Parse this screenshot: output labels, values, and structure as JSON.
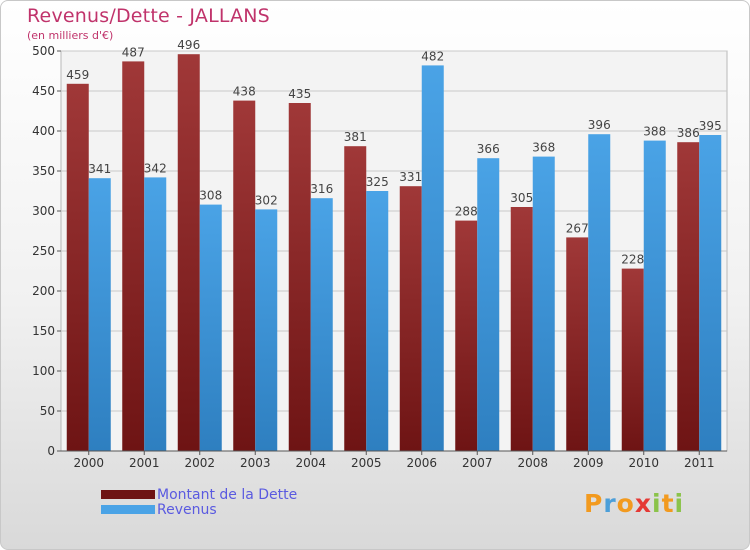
{
  "colors": {
    "dette": "#6e1414",
    "dette_light": "#a03838",
    "revenus": "#4aa3e6",
    "revenus_dark": "#2e7fc0",
    "title": "#c0336b",
    "legend_text": "#5a5ae0"
  },
  "brand": {
    "text": "Proxiti"
  },
  "chart_data": {
    "type": "bar",
    "title": "Revenus/Dette - JALLANS",
    "subtitle": "(en milliers d'€)",
    "categories": [
      "2000",
      "2001",
      "2002",
      "2003",
      "2004",
      "2005",
      "2006",
      "2007",
      "2008",
      "2009",
      "2010",
      "2011"
    ],
    "series": [
      {
        "name": "Montant de la Dette",
        "values": [
          459,
          487,
          496,
          438,
          435,
          381,
          331,
          288,
          305,
          267,
          228,
          386
        ]
      },
      {
        "name": "Revenus",
        "values": [
          341,
          342,
          308,
          302,
          316,
          325,
          482,
          366,
          368,
          396,
          388,
          395
        ]
      }
    ],
    "ylim": [
      0,
      500
    ],
    "yticks": [
      0,
      50,
      100,
      150,
      200,
      250,
      300,
      350,
      400,
      450,
      500
    ],
    "grid": true,
    "legend_position": "bottom-left"
  }
}
